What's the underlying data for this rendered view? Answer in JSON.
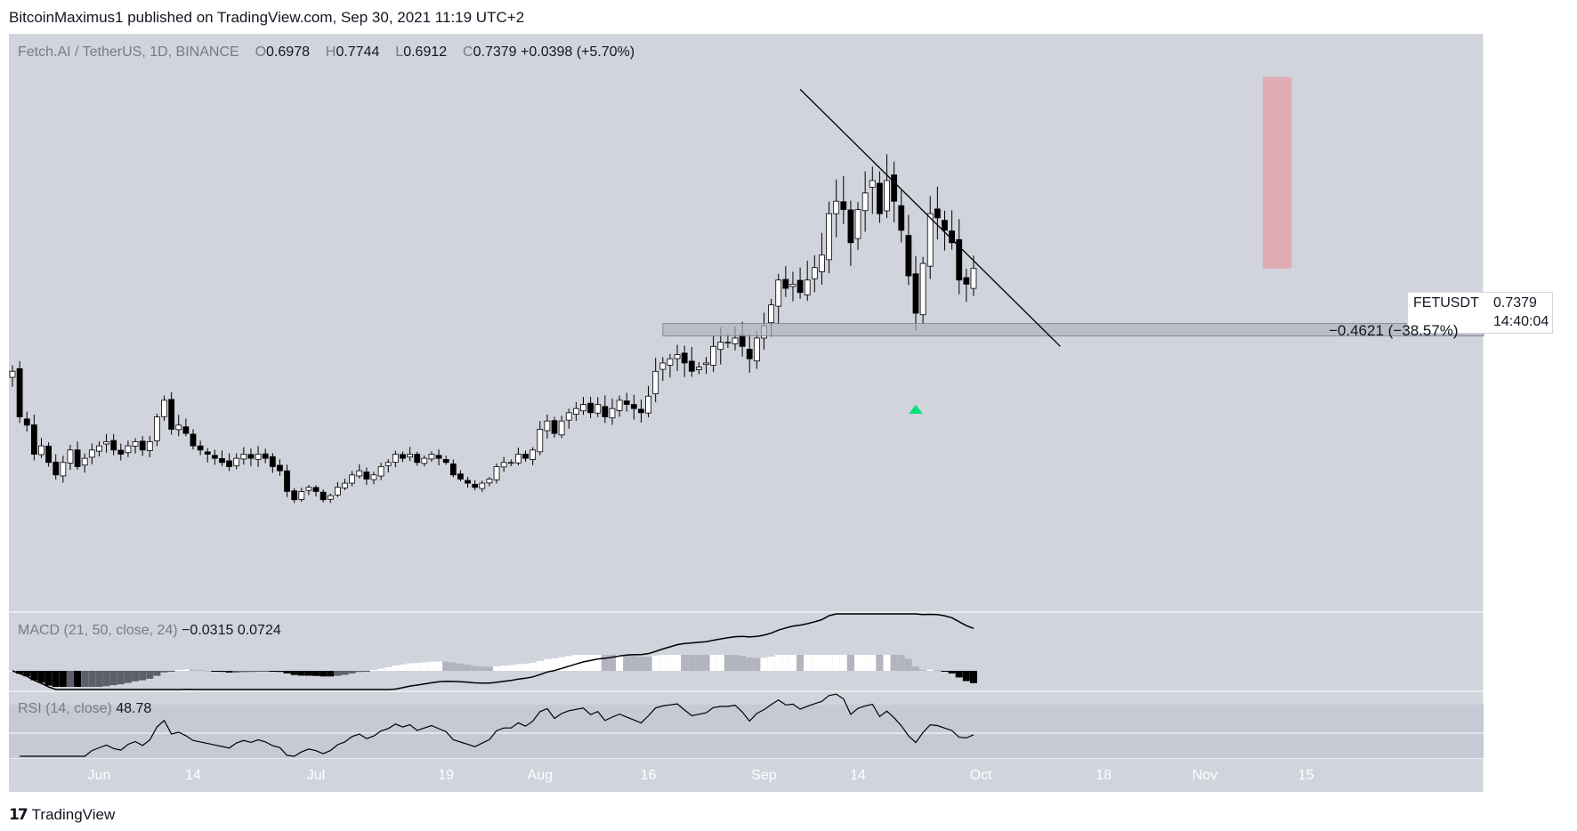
{
  "header": {
    "published": "BitcoinMaximus1 published on TradingView.com, Sep 30, 2021 11:19 UTC+2"
  },
  "legend": {
    "symbol": "Fetch.AI / TetherUS, 1D, BINANCE",
    "o_label": "O",
    "o": "0.6978",
    "h_label": "H",
    "h": "0.7744",
    "l_label": "L",
    "l": "0.6912",
    "c_label": "C",
    "c": "0.7379",
    "change": "+0.0398 (+5.70%)"
  },
  "price_tag": {
    "symbol": "FETUSDT",
    "price": "0.7379",
    "countdown": "14:40:04"
  },
  "measure_label": "−0.4621 (−38.57%)",
  "macd": {
    "label": "MACD (21, 50, close, 24)",
    "v1": "−0.0315",
    "v2": "0.0724",
    "zero_tick": "0.0000"
  },
  "rsi": {
    "label": "RSI (14, close)",
    "value": "48.78",
    "tick": "75.00"
  },
  "footer": {
    "brand": "TradingView"
  },
  "colors": {
    "chart_bg": "#d1d4dc",
    "axis_bg": "#d1d4dc",
    "candle_up": "#ffffff",
    "candle_down": "#000000",
    "support_zone": "#b2b5be",
    "target_zone": "#e0a5aa",
    "arrow": "#00e676",
    "trendline": "#000000"
  },
  "icons": {
    "footer_logo": "tradingview-logo-icon"
  },
  "chart_data": {
    "type": "candlestick",
    "title": "Fetch.AI / TetherUS, 1D, BINANCE",
    "y_unit": "USDT",
    "y_ticks": [
      "1.3000",
      "1.2000",
      "1.1000",
      "1.0000",
      "0.9000",
      "0.8000",
      "0.7000",
      "0.6000",
      "0.5000",
      "0.4000",
      "0.3000",
      "0.2000",
      "0.1000"
    ],
    "y_tick_values": [
      1.3,
      1.2,
      1.1,
      1.0,
      0.9,
      0.8,
      0.7,
      0.6,
      0.5,
      0.4,
      0.3,
      0.2,
      0.1
    ],
    "ylim": [
      0.1,
      1.3
    ],
    "x_ticks": [
      "Jun",
      "14",
      "Jul",
      "19",
      "Aug",
      "16",
      "Sep",
      "14",
      "Oct",
      "18",
      "Nov",
      "15"
    ],
    "x_tick_dates": [
      "2021-06-01",
      "2021-06-14",
      "2021-07-01",
      "2021-07-19",
      "2021-08-01",
      "2021-08-16",
      "2021-09-01",
      "2021-09-14",
      "2021-10-01",
      "2021-10-18",
      "2021-11-01",
      "2021-11-15"
    ],
    "candles_close": [
      [
        "2021-05-20",
        0.49
      ],
      [
        "2021-05-21",
        0.38
      ],
      [
        "2021-05-22",
        0.36
      ],
      [
        "2021-05-23",
        0.29
      ],
      [
        "2021-05-24",
        0.31
      ],
      [
        "2021-05-25",
        0.27
      ],
      [
        "2021-05-26",
        0.24
      ],
      [
        "2021-05-27",
        0.27
      ],
      [
        "2021-05-28",
        0.3
      ],
      [
        "2021-05-29",
        0.26
      ],
      [
        "2021-05-30",
        0.28
      ],
      [
        "2021-05-31",
        0.3
      ],
      [
        "2021-06-01",
        0.31
      ],
      [
        "2021-06-02",
        0.32
      ],
      [
        "2021-06-03",
        0.3
      ],
      [
        "2021-06-04",
        0.29
      ],
      [
        "2021-06-05",
        0.31
      ],
      [
        "2021-06-06",
        0.32
      ],
      [
        "2021-06-07",
        0.3
      ],
      [
        "2021-06-08",
        0.32
      ],
      [
        "2021-06-09",
        0.38
      ],
      [
        "2021-06-10",
        0.42
      ],
      [
        "2021-06-11",
        0.35
      ],
      [
        "2021-06-12",
        0.36
      ],
      [
        "2021-06-13",
        0.34
      ],
      [
        "2021-06-14",
        0.31
      ],
      [
        "2021-06-15",
        0.3
      ],
      [
        "2021-06-16",
        0.29
      ],
      [
        "2021-06-17",
        0.28
      ],
      [
        "2021-06-18",
        0.27
      ],
      [
        "2021-06-19",
        0.26
      ],
      [
        "2021-06-20",
        0.28
      ],
      [
        "2021-06-21",
        0.29
      ],
      [
        "2021-06-22",
        0.28
      ],
      [
        "2021-06-23",
        0.29
      ],
      [
        "2021-06-24",
        0.28
      ],
      [
        "2021-06-25",
        0.26
      ],
      [
        "2021-06-26",
        0.25
      ],
      [
        "2021-06-27",
        0.2
      ],
      [
        "2021-06-28",
        0.18
      ],
      [
        "2021-06-29",
        0.2
      ],
      [
        "2021-06-30",
        0.21
      ],
      [
        "2021-07-01",
        0.2
      ],
      [
        "2021-07-02",
        0.18
      ],
      [
        "2021-07-03",
        0.19
      ],
      [
        "2021-07-04",
        0.21
      ],
      [
        "2021-07-05",
        0.22
      ],
      [
        "2021-07-06",
        0.24
      ],
      [
        "2021-07-07",
        0.25
      ],
      [
        "2021-07-08",
        0.23
      ],
      [
        "2021-07-09",
        0.24
      ],
      [
        "2021-07-10",
        0.26
      ],
      [
        "2021-07-11",
        0.27
      ],
      [
        "2021-07-12",
        0.29
      ],
      [
        "2021-07-13",
        0.28
      ],
      [
        "2021-07-14",
        0.29
      ],
      [
        "2021-07-15",
        0.27
      ],
      [
        "2021-07-16",
        0.28
      ],
      [
        "2021-07-17",
        0.29
      ],
      [
        "2021-07-18",
        0.28
      ],
      [
        "2021-07-19",
        0.27
      ],
      [
        "2021-07-20",
        0.24
      ],
      [
        "2021-07-21",
        0.23
      ],
      [
        "2021-07-22",
        0.22
      ],
      [
        "2021-07-23",
        0.21
      ],
      [
        "2021-07-24",
        0.22
      ],
      [
        "2021-07-25",
        0.23
      ],
      [
        "2021-07-26",
        0.26
      ],
      [
        "2021-07-27",
        0.27
      ],
      [
        "2021-07-28",
        0.27
      ],
      [
        "2021-07-29",
        0.29
      ],
      [
        "2021-07-30",
        0.28
      ],
      [
        "2021-07-31",
        0.3
      ],
      [
        "2021-08-01",
        0.35
      ],
      [
        "2021-08-02",
        0.37
      ],
      [
        "2021-08-03",
        0.34
      ],
      [
        "2021-08-04",
        0.37
      ],
      [
        "2021-08-05",
        0.39
      ],
      [
        "2021-08-06",
        0.4
      ],
      [
        "2021-08-07",
        0.41
      ],
      [
        "2021-08-08",
        0.39
      ],
      [
        "2021-08-09",
        0.41
      ],
      [
        "2021-08-10",
        0.38
      ],
      [
        "2021-08-11",
        0.4
      ],
      [
        "2021-08-12",
        0.42
      ],
      [
        "2021-08-13",
        0.41
      ],
      [
        "2021-08-14",
        0.4
      ],
      [
        "2021-08-15",
        0.39
      ],
      [
        "2021-08-16",
        0.43
      ],
      [
        "2021-08-17",
        0.49
      ],
      [
        "2021-08-18",
        0.51
      ],
      [
        "2021-08-19",
        0.52
      ],
      [
        "2021-08-20",
        0.53
      ],
      [
        "2021-08-21",
        0.51
      ],
      [
        "2021-08-22",
        0.49
      ],
      [
        "2021-08-23",
        0.5
      ],
      [
        "2021-08-24",
        0.51
      ],
      [
        "2021-08-25",
        0.55
      ],
      [
        "2021-08-26",
        0.56
      ],
      [
        "2021-08-27",
        0.56
      ],
      [
        "2021-08-28",
        0.57
      ],
      [
        "2021-08-29",
        0.55
      ],
      [
        "2021-08-30",
        0.52
      ],
      [
        "2021-08-31",
        0.57
      ],
      [
        "2021-09-01",
        0.6
      ],
      [
        "2021-09-02",
        0.65
      ],
      [
        "2021-09-03",
        0.71
      ],
      [
        "2021-09-04",
        0.69
      ],
      [
        "2021-09-05",
        0.7
      ],
      [
        "2021-09-06",
        0.68
      ],
      [
        "2021-09-07",
        0.71
      ],
      [
        "2021-09-08",
        0.74
      ],
      [
        "2021-09-09",
        0.77
      ],
      [
        "2021-09-10",
        0.87
      ],
      [
        "2021-09-11",
        0.9
      ],
      [
        "2021-09-12",
        0.88
      ],
      [
        "2021-09-13",
        0.8
      ],
      [
        "2021-09-14",
        0.88
      ],
      [
        "2021-09-15",
        0.92
      ],
      [
        "2021-09-16",
        0.95
      ],
      [
        "2021-09-17",
        0.87
      ],
      [
        "2021-09-18",
        0.95
      ],
      [
        "2021-09-19",
        0.9
      ],
      [
        "2021-09-20",
        0.83
      ],
      [
        "2021-09-21",
        0.72
      ],
      [
        "2021-09-22",
        0.63
      ],
      [
        "2021-09-23",
        0.75
      ],
      [
        "2021-09-24",
        0.87
      ],
      [
        "2021-09-25",
        0.86
      ],
      [
        "2021-09-26",
        0.83
      ],
      [
        "2021-09-27",
        0.8
      ],
      [
        "2021-09-28",
        0.71
      ],
      [
        "2021-09-29",
        0.7
      ],
      [
        "2021-09-30",
        0.7379
      ]
    ],
    "candle_count": 134,
    "support_zone": [
      0.575,
      0.605
    ],
    "support_zone_start": "2021-08-18",
    "trendline": {
      "from": [
        "2021-09-06",
        1.17
      ],
      "to": [
        "2021-10-12",
        0.55
      ]
    },
    "target_zone": {
      "date_range": [
        "2021-11-09",
        "2021-11-13"
      ],
      "price_range": [
        0.7379,
        1.2
      ]
    },
    "macd_params": [
      21,
      50,
      24
    ],
    "macd_values": [
      -0.0315,
      0.0724
    ],
    "rsi_period": 14,
    "rsi_value": 48.78
  }
}
